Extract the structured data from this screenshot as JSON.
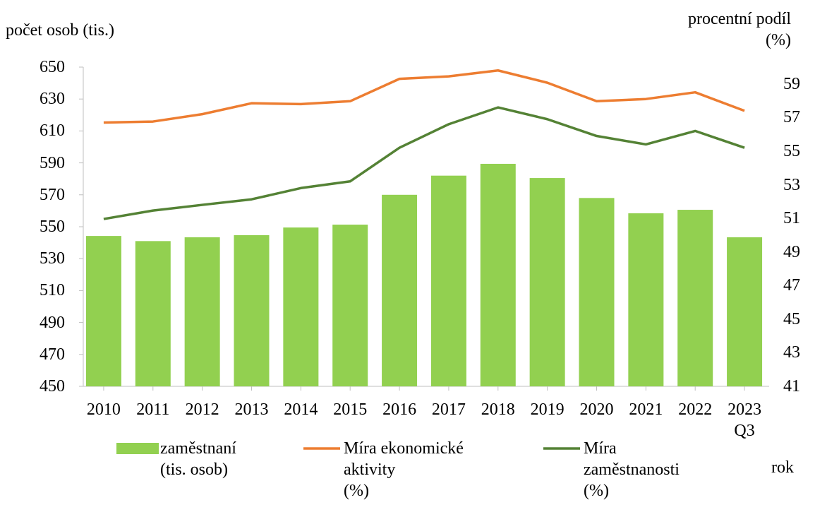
{
  "chart_data": {
    "type": "bar-line",
    "ylabel": "počet osob (tis.)",
    "y2label": "procentní podíl\n(%)",
    "xlabel": "rok",
    "categories": [
      "2010",
      "2011",
      "2012",
      "2013",
      "2014",
      "2015",
      "2016",
      "2017",
      "2018",
      "2019",
      "2020",
      "2021",
      "2022",
      "2023\nQ3"
    ],
    "series": [
      {
        "name": "zaměstnaní\n(tis. osob)",
        "type": "bar",
        "color": "#92d050",
        "axis": "y",
        "values": [
          544.2,
          541,
          543.4,
          544.7,
          549.5,
          551.3,
          570,
          582,
          589.4,
          580.5,
          568,
          558.4,
          560.6,
          543.4
        ]
      },
      {
        "name": "Míra ekonomické\naktivity\n(%)",
        "type": "line",
        "color": "#ed7d31",
        "axis": "y2",
        "values": [
          56.7,
          56.76,
          57.2,
          57.85,
          57.8,
          57.97,
          59.3,
          59.45,
          59.8,
          59.07,
          57.97,
          58.1,
          58.5,
          57.4
        ]
      },
      {
        "name": "Míra\nzaměstnanosti\n(%)",
        "type": "line",
        "color": "#548235",
        "axis": "y2",
        "values": [
          50.96,
          51.46,
          51.8,
          52.13,
          52.8,
          53.2,
          55.2,
          56.6,
          57.6,
          56.9,
          55.9,
          55.4,
          56.2,
          55.2
        ]
      }
    ],
    "ylim": [
      450,
      650
    ],
    "yticks": [
      450,
      470,
      490,
      510,
      530,
      550,
      570,
      590,
      610,
      630,
      650
    ],
    "y2lim": [
      41,
      60
    ],
    "y2ticks": [
      41,
      43,
      45,
      47,
      49,
      51,
      53,
      55,
      57,
      59
    ],
    "legend": "bottom"
  }
}
